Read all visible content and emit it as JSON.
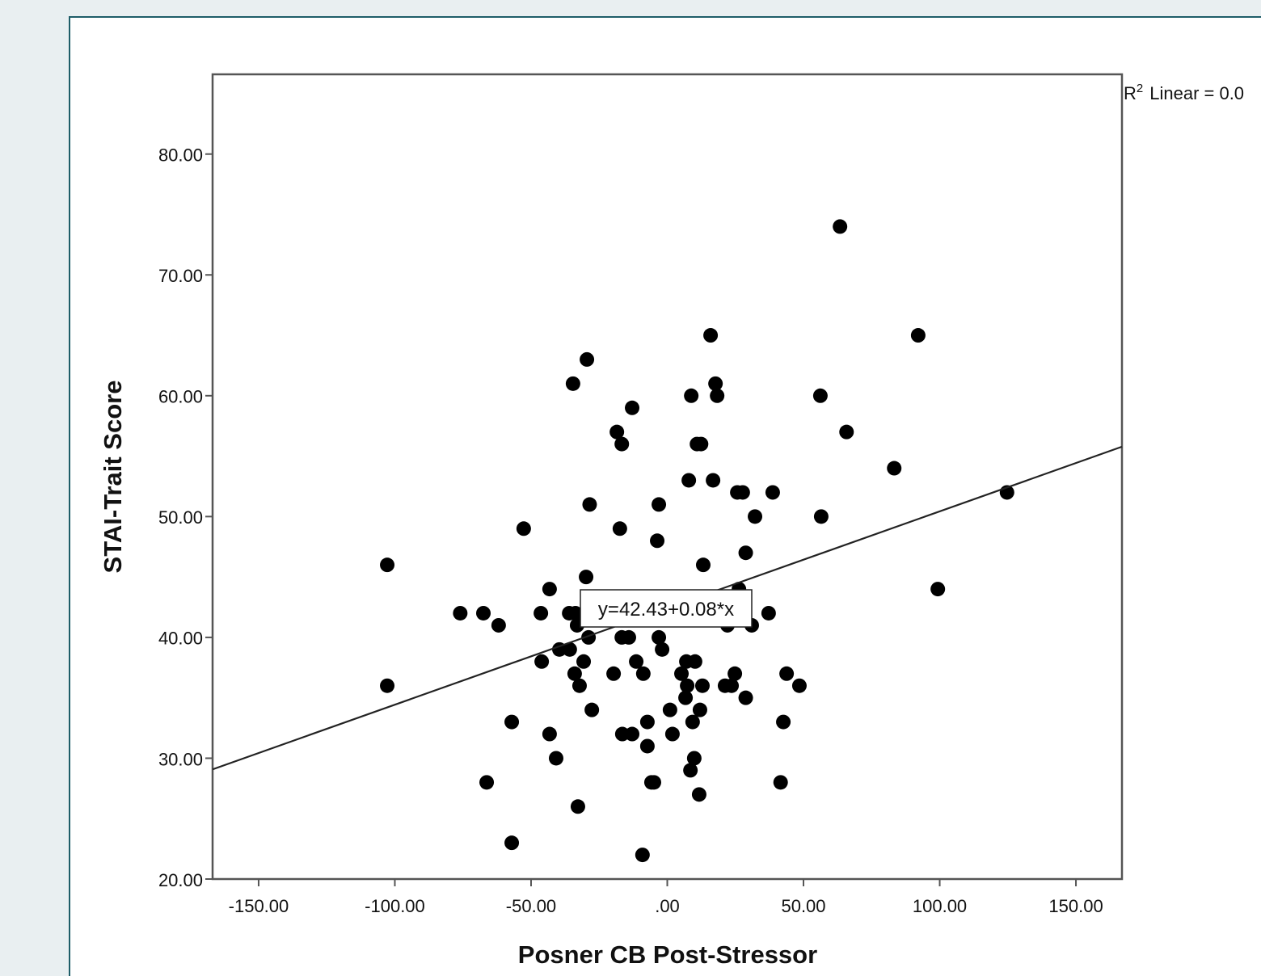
{
  "chart_data": {
    "type": "scatter",
    "x_label": "Posner CB Post-Stressor",
    "y_label": "STAI-Trait Score",
    "x": [
      63.4,
      15.9,
      92.1,
      -29.5,
      -34.6,
      17.7,
      -12.9,
      8.8,
      18.3,
      56.2,
      -18.5,
      -16.7,
      10.9,
      12.4,
      65.8,
      83.3,
      7.9,
      16.8,
      25.7,
      27.7,
      38.7,
      124.7,
      -28.5,
      -3.1,
      32.2,
      56.5,
      -52.7,
      -17.4,
      -3.7,
      28.8,
      -102.8,
      13.2,
      -29.8,
      -43.2,
      26.3,
      99.3,
      -76.0,
      -67.5,
      -46.4,
      -36.0,
      -33.7,
      37.2,
      -61.9,
      -33.1,
      22.1,
      31.0,
      -28.9,
      -16.7,
      -14.1,
      -3.1,
      -39.6,
      -35.8,
      -1.9,
      -46.1,
      -30.7,
      -11.4,
      7.0,
      10.2,
      -34.0,
      -19.7,
      -8.8,
      5.2,
      24.8,
      43.8,
      -32.2,
      7.3,
      12.9,
      21.2,
      23.6,
      48.5,
      -102.8,
      6.7,
      28.8,
      -27.7,
      1.0,
      12.0,
      -57.1,
      -7.3,
      9.3,
      42.6,
      -43.2,
      -16.5,
      -12.9,
      1.9,
      -7.3,
      -40.8,
      9.9,
      8.5,
      -66.3,
      -5.8,
      -4.9,
      41.6,
      11.7,
      -32.8,
      -57.1,
      -9.1
    ],
    "values": [
      74,
      65,
      65,
      63,
      61,
      61,
      59,
      60,
      60,
      60,
      57,
      56,
      56,
      56,
      57,
      54,
      53,
      53,
      52,
      52,
      52,
      52,
      51,
      51,
      50,
      50,
      49,
      49,
      48,
      47,
      46,
      46,
      45,
      44,
      44,
      44,
      42,
      42,
      42,
      42,
      42,
      42,
      41,
      41,
      41,
      41,
      40,
      40,
      40,
      40,
      39,
      39,
      39,
      38,
      38,
      38,
      38,
      38,
      37,
      37,
      37,
      37,
      37,
      37,
      36,
      36,
      36,
      36,
      36,
      36,
      36,
      35,
      35,
      34,
      34,
      34,
      33,
      33,
      33,
      33,
      32,
      32,
      32,
      32,
      31,
      30,
      30,
      29,
      28,
      28,
      28,
      28,
      27,
      26,
      23,
      22
    ],
    "color": "#000000",
    "xlim": [
      -166.9,
      166.9
    ],
    "ylim": [
      20,
      86.6
    ],
    "xticks": [
      {
        "value": -150,
        "label": "-150.00"
      },
      {
        "value": -100,
        "label": "-100.00"
      },
      {
        "value": -50,
        "label": "-50.00"
      },
      {
        "value": 0,
        "label": ".00"
      },
      {
        "value": 50,
        "label": "50.00"
      },
      {
        "value": 100,
        "label": "100.00"
      },
      {
        "value": 150,
        "label": "150.00"
      }
    ],
    "yticks": [
      {
        "value": 20,
        "label": "20.00"
      },
      {
        "value": 30,
        "label": "30.00"
      },
      {
        "value": 40,
        "label": "40.00"
      },
      {
        "value": 50,
        "label": "50.00"
      },
      {
        "value": 60,
        "label": "60.00"
      },
      {
        "value": 70,
        "label": "70.00"
      },
      {
        "value": 80,
        "label": "80.00"
      }
    ],
    "fit": {
      "intercept": 42.43,
      "slope": 0.08
    },
    "fit_label": "y=42.43+0.08*x",
    "r2_annotation": {
      "base": "R",
      "superscript": "2",
      "text": "Linear = 0.0"
    }
  }
}
